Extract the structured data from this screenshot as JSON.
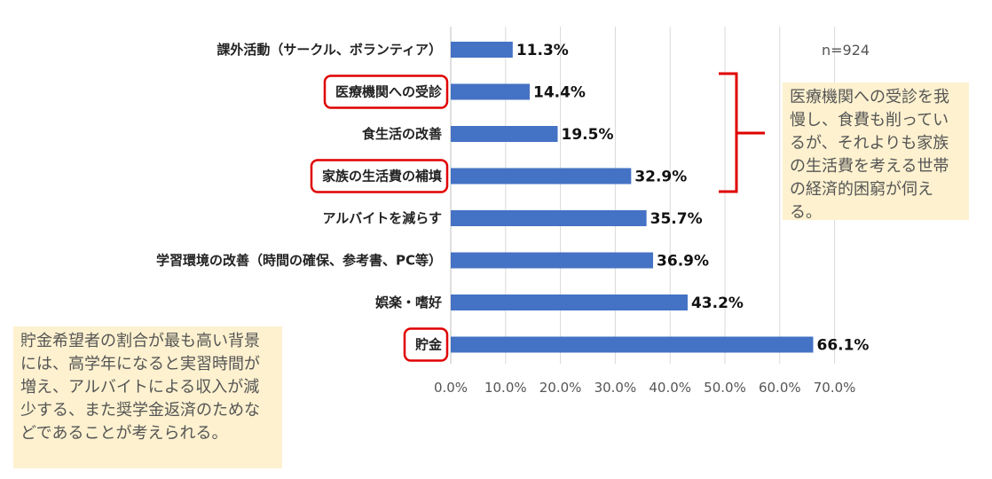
{
  "chart_data": {
    "type": "bar",
    "orientation": "horizontal",
    "categories": [
      "課外活動（サークル、ボランティア）",
      "医療機関への受診",
      "食生活の改善",
      "家族の生活費の補填",
      "アルバイトを減らす",
      "学習環境の改善（時間の確保、参考書、PC等）",
      "娯楽・嗜好",
      "貯金"
    ],
    "values": [
      11.3,
      14.4,
      19.5,
      32.9,
      35.7,
      36.9,
      43.2,
      66.1
    ],
    "value_labels": [
      "11.3%",
      "14.4%",
      "19.5%",
      "32.9%",
      "35.7%",
      "36.9%",
      "43.2%",
      "66.1%"
    ],
    "xlim": [
      0,
      70
    ],
    "x_ticks": [
      "0.0%",
      "10.0%",
      "20.0%",
      "30.0%",
      "40.0%",
      "50.0%",
      "60.0%",
      "70.0%"
    ],
    "grid": true,
    "bar_color": "#4472c4",
    "highlighted_categories": [
      "医療機関への受診",
      "家族の生活費の補填",
      "貯金"
    ],
    "highlight_color": "#e00000",
    "sample_size": "n=924"
  },
  "notes": {
    "right": "医療機関への受診を我慢し、食費も削っているが、それよりも家族の生活費を考える世帯の経済的困窮が伺える。",
    "left": "貯金希望者の割合が最も高い背景には、高学年になると実習時間が増え、アルバイトによる収入が減少する、また奨学金返済のためなどであることが考えられる。",
    "background_color": "#fdf1cf"
  }
}
